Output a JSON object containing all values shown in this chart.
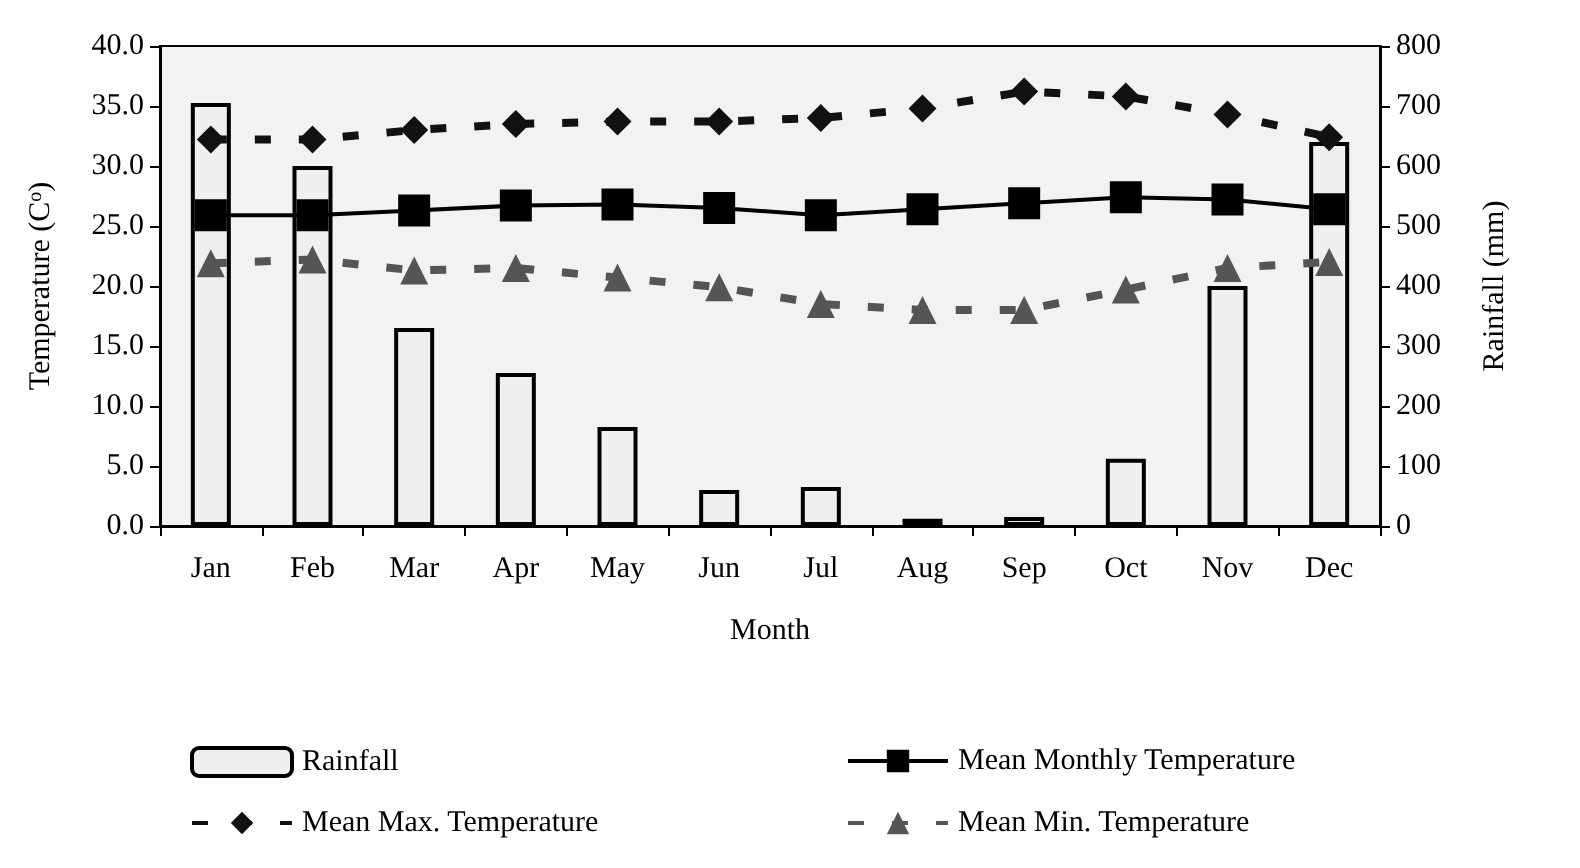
{
  "chart_data": {
    "type": "bar",
    "xlabel": "Month",
    "ylabel": "Temperature (C$^{o}$)",
    "y2label": "Rainfall (mm)",
    "categories": [
      "Jan",
      "Feb",
      "Mar",
      "Apr",
      "May",
      "Jun",
      "Jul",
      "Aug",
      "Sep",
      "Oct",
      "Nov",
      "Dec"
    ],
    "series": [
      {
        "name": "Rainfall",
        "axis": "y2",
        "color": "#efefef",
        "values": [
          705,
          600,
          330,
          255,
          165,
          60,
          65,
          12,
          15,
          112,
          400,
          640
        ]
      },
      {
        "name": "Mean Monthly Temperature",
        "type": "line",
        "color": "#000000",
        "marker": "square",
        "line_style": "solid",
        "values": [
          25.9,
          25.9,
          26.3,
          26.7,
          26.8,
          26.5,
          25.9,
          26.4,
          26.9,
          27.4,
          27.2,
          26.4
        ]
      },
      {
        "name": "Mean Max. Temperature",
        "type": "line",
        "color": "#111111",
        "marker": "diamond",
        "line_style": "dashed",
        "values": [
          32.2,
          32.2,
          33.0,
          33.5,
          33.7,
          33.7,
          34.0,
          34.8,
          36.2,
          35.8,
          34.3,
          32.4
        ]
      },
      {
        "name": "Mean Min. Temperature",
        "type": "line",
        "color": "#555555",
        "marker": "triangle",
        "line_style": "dashed",
        "values": [
          21.9,
          22.2,
          21.3,
          21.5,
          20.7,
          19.9,
          18.5,
          18.0,
          18.0,
          19.7,
          21.5,
          22.0
        ]
      }
    ],
    "ylim": [
      0,
      40
    ],
    "yticks": [
      {
        "value": 0,
        "label": "0.0"
      },
      {
        "value": 5,
        "label": "5.0"
      },
      {
        "value": 10,
        "label": "10.0"
      },
      {
        "value": 15,
        "label": "15.0"
      },
      {
        "value": 20,
        "label": "20.0"
      },
      {
        "value": 25,
        "label": "25.0"
      },
      {
        "value": 30,
        "label": "30.0"
      },
      {
        "value": 35,
        "label": "35.0"
      },
      {
        "value": 40,
        "label": "40.0"
      }
    ],
    "y2lim": [
      0,
      800
    ],
    "y2ticks": [
      0,
      100,
      200,
      300,
      400,
      500,
      600,
      700,
      800
    ],
    "grid": false,
    "legend": "bottom"
  }
}
